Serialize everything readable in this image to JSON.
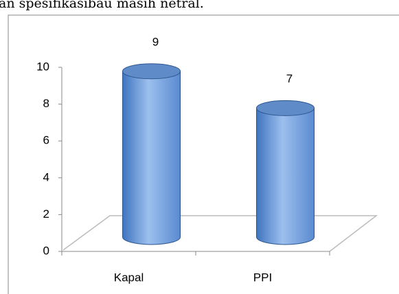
{
  "header_text": "an spesifikasibau masih netral.",
  "chart_data": {
    "type": "bar3d",
    "categories": [
      "Kapal",
      "PPI"
    ],
    "values": [
      9,
      7
    ],
    "color": "#5b8fd6",
    "ylim": [
      0,
      10
    ],
    "yticks": [
      0,
      2,
      4,
      6,
      8,
      10
    ]
  }
}
